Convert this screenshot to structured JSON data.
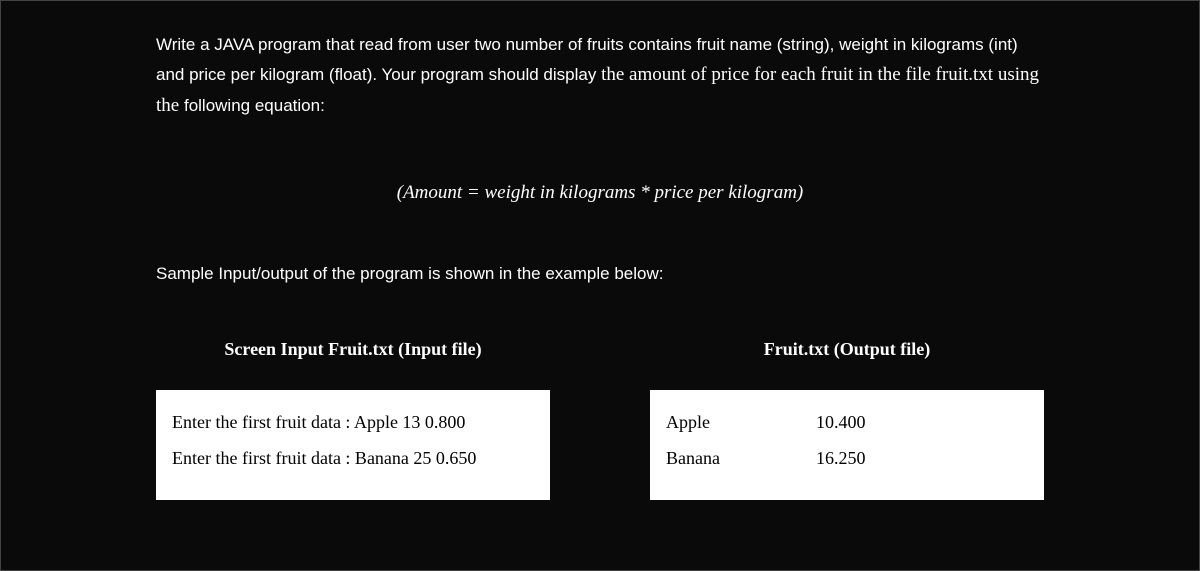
{
  "question": {
    "part1": "Write a JAVA program that read from user two number of fruits contains fruit name (string), weight in kilograms (int) and price per kilogram (float). Your program should display ",
    "part2_serif": "the amount of price for each fruit in the file fruit.txt using the ",
    "part3": "following equation:"
  },
  "equation": "(Amount = weight in kilograms * price per kilogram)",
  "sample_label": "Sample Input/output of the program is shown in the example below:",
  "input_section": {
    "header": "Screen Input Fruit.txt (Input file)",
    "lines": [
      "Enter the first fruit data : Apple 13 0.800",
      "Enter the first fruit data : Banana 25 0.650"
    ]
  },
  "output_section": {
    "header": "Fruit.txt (Output file)",
    "rows": [
      {
        "name": "Apple",
        "value": "10.400"
      },
      {
        "name": "Banana",
        "value": "16.250"
      }
    ]
  },
  "colors": {
    "background": "#0a0a0a",
    "text": "#ffffff",
    "box_bg": "#ffffff",
    "box_text": "#000000",
    "border": "#444444"
  }
}
